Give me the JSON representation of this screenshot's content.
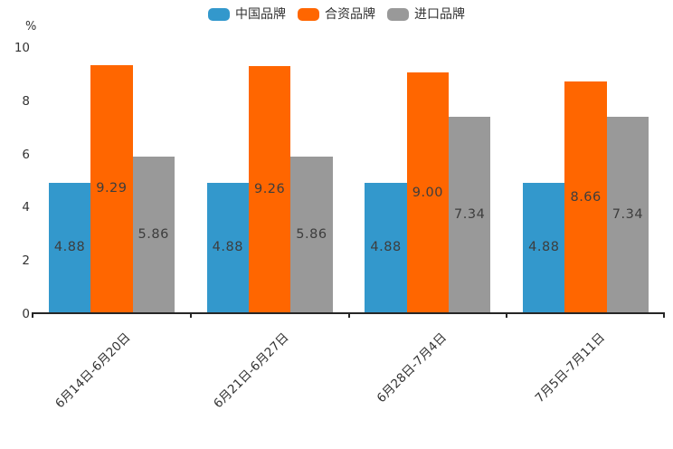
{
  "chart_data": {
    "type": "bar",
    "title": "",
    "unit_label": "%",
    "categories": [
      "6月14日-6月20日",
      "6月21日-6月27日",
      "6月28日-7月4日",
      "7月5日-7月11日"
    ],
    "series": [
      {
        "name": "中国品牌",
        "color": "#3398CC",
        "values": [
          4.88,
          4.88,
          4.88,
          4.88
        ],
        "display_values": [
          "4.88",
          "4.88",
          "4.88",
          "4.88"
        ]
      },
      {
        "name": "合资品牌",
        "color": "#FF6600",
        "values": [
          9.29,
          9.26,
          9.0,
          8.66
        ],
        "display_values": [
          "9.29",
          "9.26",
          "9.00",
          "8.66"
        ]
      },
      {
        "name": "进口品牌",
        "color": "#999999",
        "values": [
          5.86,
          5.86,
          7.34,
          7.34
        ],
        "display_values": [
          "5.86",
          "5.86",
          "7.34",
          "7.34"
        ]
      }
    ],
    "xlabel": "",
    "ylabel": "%",
    "ylim": [
      0,
      10
    ],
    "yticks": [
      0,
      2,
      4,
      6,
      8,
      10
    ],
    "grid": false,
    "legend_position": "top",
    "value_labels": true,
    "colors": {
      "axis": "#262626",
      "tick_label": "#333333",
      "value_label": "#3D3D3D",
      "background": "#FFFFFF"
    }
  }
}
